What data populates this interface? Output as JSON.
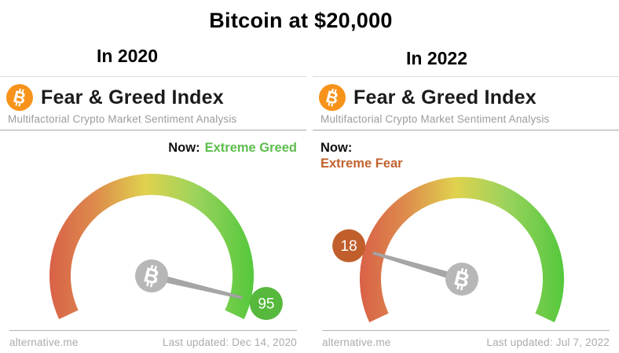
{
  "title": "Bitcoin at $20,000",
  "brand_color": "#f7931a",
  "gauge": {
    "min": 0,
    "max": 100,
    "gradient": [
      "#d96148",
      "#dd8a4c",
      "#e0d24e",
      "#9ad35c",
      "#54c83c"
    ],
    "needle_color": "#a6a6a6",
    "pivot_coin_color": "#b7b7b7"
  },
  "panels": [
    {
      "year_label": "In 2020",
      "title": "Fear & Greed Index",
      "subtitle": "Multifactorial Crypto Market Sentiment Analysis",
      "now_label": "Now:",
      "now_value": "Extreme Greed",
      "now_value_color": "#5dbd4d",
      "gauge": {
        "value": 95,
        "badge_color": "#56b83c"
      },
      "footer_site": "alternative.me",
      "footer_updated": "Last updated: Dec 14, 2020"
    },
    {
      "year_label": "In 2022",
      "title": "Fear & Greed Index",
      "subtitle": "Multifactorial Crypto Market Sentiment Analysis",
      "now_label": "Now:",
      "now_value": "Extreme Fear",
      "now_value_color": "#c2622e",
      "gauge": {
        "value": 18,
        "badge_color": "#c15f2c"
      },
      "footer_site": "alternative.me",
      "footer_updated": "Last updated: Jul 7, 2022"
    }
  ],
  "chart_data": [
    {
      "type": "gauge",
      "title": "Fear & Greed Index — In 2020",
      "value": 95,
      "min": 0,
      "max": 100,
      "sentiment": "Extreme Greed",
      "last_updated": "Dec 14, 2020",
      "source": "alternative.me"
    },
    {
      "type": "gauge",
      "title": "Fear & Greed Index — In 2022",
      "value": 18,
      "min": 0,
      "max": 100,
      "sentiment": "Extreme Fear",
      "last_updated": "Jul 7, 2022",
      "source": "alternative.me"
    }
  ]
}
